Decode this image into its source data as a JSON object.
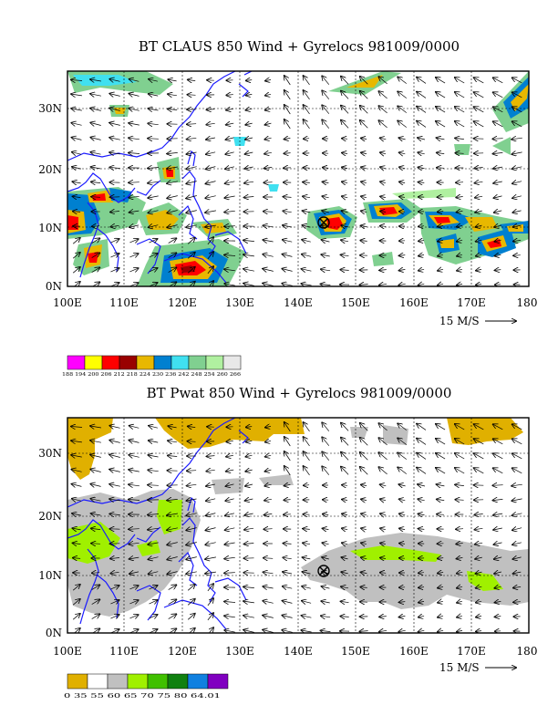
{
  "panels": [
    {
      "title": "BT CLAUS 850 Wind + Gyrelocs 981009/0000",
      "lat_labels": [
        "0N",
        "10N",
        "20N",
        "30N"
      ],
      "lon_labels": [
        "100E",
        "110E",
        "120E",
        "130E",
        "140E",
        "150E",
        "160E",
        "170E",
        "180"
      ],
      "ref_vector": "15 M/S",
      "legend_values": [
        "188",
        "194",
        "200",
        "206",
        "212",
        "218",
        "224",
        "230",
        "236",
        "242",
        "248",
        "254",
        "260",
        "266"
      ],
      "legend_colors": [
        "#ff00ff",
        "#ffff00",
        "#ff0000",
        "#990000",
        "#e8b800",
        "#0080d0",
        "#40e0f0",
        "#80d090",
        "#b0f0a0",
        "#e8e8e8"
      ],
      "legend_label_text": "188 194 200 206 212 218 224 230 236 242 248 254 260 266",
      "storm_marker": {
        "lon": 144.3,
        "lat": 10.3
      }
    },
    {
      "title": "BT Pwat 850 Wind + Gyrelocs 981009/0000",
      "lat_labels": [
        "0N",
        "10N",
        "20N",
        "30N"
      ],
      "lon_labels": [
        "100E",
        "110E",
        "120E",
        "130E",
        "140E",
        "150E",
        "160E",
        "170E",
        "180"
      ],
      "ref_vector": "15 M/S",
      "legend_values": [
        "0",
        "35",
        "55",
        "60",
        "65",
        "70",
        "75",
        "80",
        "64.01"
      ],
      "legend_colors": [
        "#e0b000",
        "#ffffff",
        "#c0c0c0",
        "#a0f000",
        "#40c000",
        "#108010",
        "#1080e0",
        "#8000c0"
      ],
      "legend_label_text": "0 35 55 60 65 70 75 80 64.01",
      "storm_marker": {
        "lon": 144.3,
        "lat": 10.3
      }
    }
  ]
}
